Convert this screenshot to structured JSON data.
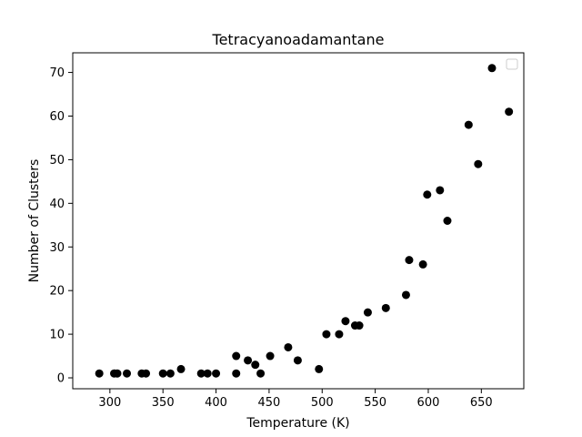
{
  "chart_data": {
    "type": "scatter",
    "title": "Tetracyanoadamantane",
    "xlabel": "Temperature (K)",
    "ylabel": "Number of Clusters",
    "xlim": [
      265,
      690
    ],
    "ylim": [
      -2.5,
      74.5
    ],
    "xticks": [
      300,
      350,
      400,
      450,
      500,
      550,
      600,
      650
    ],
    "yticks": [
      0,
      10,
      20,
      30,
      40,
      50,
      60,
      70
    ],
    "grid": false,
    "legend": "top-right",
    "marker_color": "#000000",
    "points": [
      {
        "x": 290,
        "y": 1
      },
      {
        "x": 304,
        "y": 1
      },
      {
        "x": 307,
        "y": 1
      },
      {
        "x": 316,
        "y": 1
      },
      {
        "x": 330,
        "y": 1
      },
      {
        "x": 334,
        "y": 1
      },
      {
        "x": 350,
        "y": 1
      },
      {
        "x": 357,
        "y": 1
      },
      {
        "x": 367,
        "y": 2
      },
      {
        "x": 386,
        "y": 1
      },
      {
        "x": 392,
        "y": 1
      },
      {
        "x": 400,
        "y": 1
      },
      {
        "x": 419,
        "y": 1
      },
      {
        "x": 419,
        "y": 5
      },
      {
        "x": 430,
        "y": 4
      },
      {
        "x": 437,
        "y": 3
      },
      {
        "x": 442,
        "y": 1
      },
      {
        "x": 451,
        "y": 5
      },
      {
        "x": 468,
        "y": 7
      },
      {
        "x": 477,
        "y": 4
      },
      {
        "x": 497,
        "y": 2
      },
      {
        "x": 504,
        "y": 10
      },
      {
        "x": 516,
        "y": 10
      },
      {
        "x": 522,
        "y": 13
      },
      {
        "x": 531,
        "y": 12
      },
      {
        "x": 535,
        "y": 12
      },
      {
        "x": 543,
        "y": 15
      },
      {
        "x": 560,
        "y": 16
      },
      {
        "x": 579,
        "y": 19
      },
      {
        "x": 582,
        "y": 27
      },
      {
        "x": 595,
        "y": 26
      },
      {
        "x": 599,
        "y": 42
      },
      {
        "x": 611,
        "y": 43
      },
      {
        "x": 618,
        "y": 36
      },
      {
        "x": 638,
        "y": 58
      },
      {
        "x": 647,
        "y": 49
      },
      {
        "x": 660,
        "y": 71
      },
      {
        "x": 676,
        "y": 61
      }
    ]
  }
}
